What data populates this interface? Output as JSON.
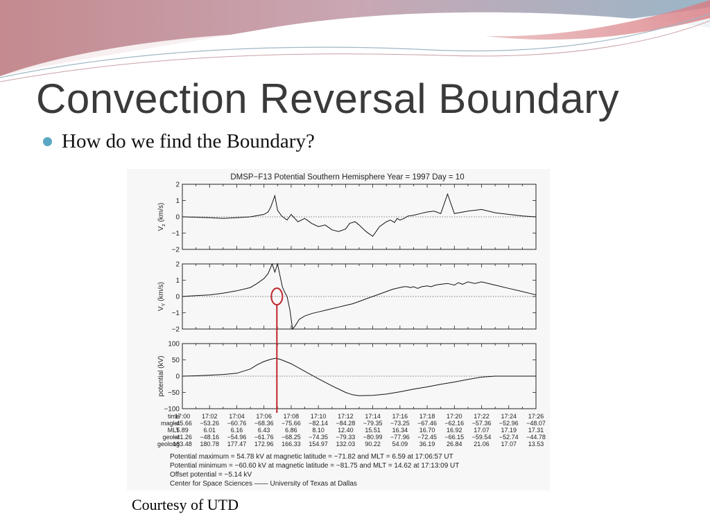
{
  "slide": {
    "title": "Convection Reversal Boundary",
    "bullet": "How do we find the Boundary?",
    "courtesy": "Courtesy of UTD",
    "colors": {
      "bullet": "#5aa7c4",
      "highlight": "#c0252b",
      "title": "#3a3a3a"
    }
  },
  "chart_data": {
    "type": "line",
    "title": "DMSP−F13 Potential Southern Hemisphere  Year = 1997 Day = 10",
    "time_labels": [
      "17:00",
      "17:02",
      "17:04",
      "17:06",
      "17:08",
      "17:10",
      "17:12",
      "17:14",
      "17:16",
      "17:18",
      "17:20",
      "17:22",
      "17:24",
      "17:26"
    ],
    "panels": [
      {
        "ylabel_main": "V",
        "ylabel_sub": "z",
        "ylabel_unit": " (km/s)",
        "ylim": [
          -2,
          2
        ],
        "ytick_labels": [
          "2",
          "1",
          "0",
          "−1",
          "−2"
        ],
        "ytick_values": [
          2,
          1,
          0,
          -1,
          -2
        ],
        "series": {
          "x": [
            0,
            2,
            3,
            4,
            5,
            6,
            6.3,
            6.5,
            6.8,
            7,
            7.3,
            7.7,
            8,
            8.5,
            9,
            9.5,
            10,
            10.5,
            11,
            11.5,
            12,
            12.3,
            12.7,
            13,
            13.5,
            14,
            14.5,
            15,
            15.3,
            15.6,
            15.8,
            16,
            16.3,
            16.6,
            17,
            17.5,
            18,
            18.5,
            19,
            19.5,
            20,
            21,
            22,
            23,
            24,
            25,
            26
          ],
          "y": [
            0,
            -0.05,
            -0.1,
            -0.05,
            0,
            0.15,
            0.3,
            0.6,
            1.3,
            0.4,
            0.05,
            -0.2,
            0.15,
            -0.3,
            -0.1,
            -0.4,
            -0.6,
            -0.5,
            -0.8,
            -0.9,
            -0.75,
            -0.4,
            -0.3,
            -0.5,
            -0.9,
            -1.2,
            -0.6,
            -0.3,
            -0.2,
            -0.35,
            -0.1,
            -0.2,
            -0.1,
            0.05,
            0.1,
            0.2,
            0.3,
            0.35,
            0.2,
            1.4,
            0.2,
            0.35,
            0.45,
            0.25,
            0.15,
            0.05,
            0
          ]
        }
      },
      {
        "ylabel_main": "V",
        "ylabel_sub": "Y",
        "ylabel_unit": " (km/s)",
        "ylim": [
          -2,
          2
        ],
        "ytick_labels": [
          "2",
          "1",
          "0",
          "−1",
          "−2"
        ],
        "ytick_values": [
          2,
          1,
          0,
          -1,
          -2
        ],
        "series": {
          "x": [
            0,
            1,
            2,
            3,
            4,
            5,
            5.5,
            6,
            6.3,
            6.6,
            6.8,
            7,
            7.2,
            7.35,
            7.5,
            7.7,
            7.9,
            8.1,
            8.3,
            8.6,
            9,
            9.5,
            10,
            10.5,
            11,
            11.5,
            12,
            12.5,
            13,
            13.5,
            14,
            14.5,
            15,
            15.5,
            16,
            16.3,
            16.5,
            16.8,
            17,
            17.3,
            17.6,
            18,
            18.3,
            18.6,
            19,
            19.5,
            20,
            20.3,
            20.6,
            21,
            21.5,
            22,
            23,
            24,
            25,
            26
          ],
          "y": [
            0,
            0.05,
            0.1,
            0.2,
            0.35,
            0.55,
            0.8,
            1.1,
            1.4,
            2,
            1.5,
            2,
            1.2,
            0.6,
            0.3,
            0,
            -0.8,
            -2,
            -1.8,
            -1.4,
            -1.2,
            -1.05,
            -0.95,
            -0.85,
            -0.75,
            -0.65,
            -0.55,
            -0.45,
            -0.3,
            -0.15,
            0,
            0.15,
            0.3,
            0.45,
            0.55,
            0.6,
            0.6,
            0.55,
            0.6,
            0.5,
            0.6,
            0.65,
            0.6,
            0.7,
            0.75,
            0.8,
            0.7,
            0.85,
            0.75,
            0.9,
            0.8,
            0.9,
            0.7,
            0.5,
            0.3,
            0.1
          ]
        }
      },
      {
        "ylabel_main": "potential (kV)",
        "ylim": [
          -100,
          100
        ],
        "ytick_labels": [
          "100",
          "50",
          "0",
          "−50",
          "−100"
        ],
        "ytick_values": [
          100,
          50,
          0,
          -50,
          -100
        ],
        "series": {
          "x": [
            0,
            1,
            2,
            3,
            4,
            5,
            5.5,
            6,
            6.5,
            6.9,
            7.3,
            8,
            9,
            10,
            11,
            12,
            12.5,
            13,
            14,
            15,
            16,
            17,
            18,
            19,
            20,
            21,
            22,
            23,
            24,
            25,
            26
          ],
          "y": [
            0,
            1,
            3,
            5,
            9,
            22,
            35,
            45,
            52,
            55,
            50,
            38,
            15,
            -8,
            -30,
            -50,
            -57,
            -60,
            -59,
            -55,
            -48,
            -40,
            -33,
            -25,
            -18,
            -10,
            -3,
            0,
            0,
            0,
            0
          ]
        }
      }
    ],
    "reversal_marker": {
      "time": "17:06:57",
      "x_index": 6.95
    },
    "table": {
      "row_labels": [
        "time",
        "maglat",
        "MLT",
        "geolat",
        "geolong"
      ],
      "rows": [
        [
          "17:00",
          "17:02",
          "17:04",
          "17:06",
          "17:08",
          "17:10",
          "17:12",
          "17:14",
          "17:16",
          "17:18",
          "17:20",
          "17:22",
          "17:24",
          "17:26"
        ],
        [
          "−45.66",
          "−53.26",
          "−60.76",
          "−68.36",
          "−75.66",
          "−82.14",
          "−84.28",
          "−79.35",
          "−73.25",
          "−67.46",
          "−62.16",
          "−57.36",
          "−52.96",
          "−48.07"
        ],
        [
          "5.89",
          "6.01",
          "6.16",
          "6.43",
          "6.86",
          "8.10",
          "12.40",
          "15.51",
          "16.34",
          "16.70",
          "16.92",
          "17.07",
          "17.19",
          "17.31"
        ],
        [
          "−41.26",
          "−48.16",
          "−54.96",
          "−61.76",
          "−68.25",
          "−74.35",
          "−79.33",
          "−80.99",
          "−77.96",
          "−72.45",
          "−66.15",
          "−59.54",
          "−52.74",
          "−44.78"
        ],
        [
          "183.48",
          "180.78",
          "177.47",
          "172.96",
          "166.33",
          "154.97",
          "132.03",
          "90.22",
          "54.09",
          "36.19",
          "26.84",
          "21.06",
          "17.07",
          "13.53"
        ]
      ]
    },
    "notes": [
      "Potential maximum = 54.78 kV  at magnetic latitude = −71.82 and MLT = 6.59 at 17:06:57 UT",
      "Potential minimum = −60.60 kV  at magnetic latitude = −81.75 and MLT = 14.62 at 17:13:09 UT",
      "Offset potential = −5.14 kV",
      "Center for Space Sciences —— University of Texas at Dallas"
    ]
  }
}
